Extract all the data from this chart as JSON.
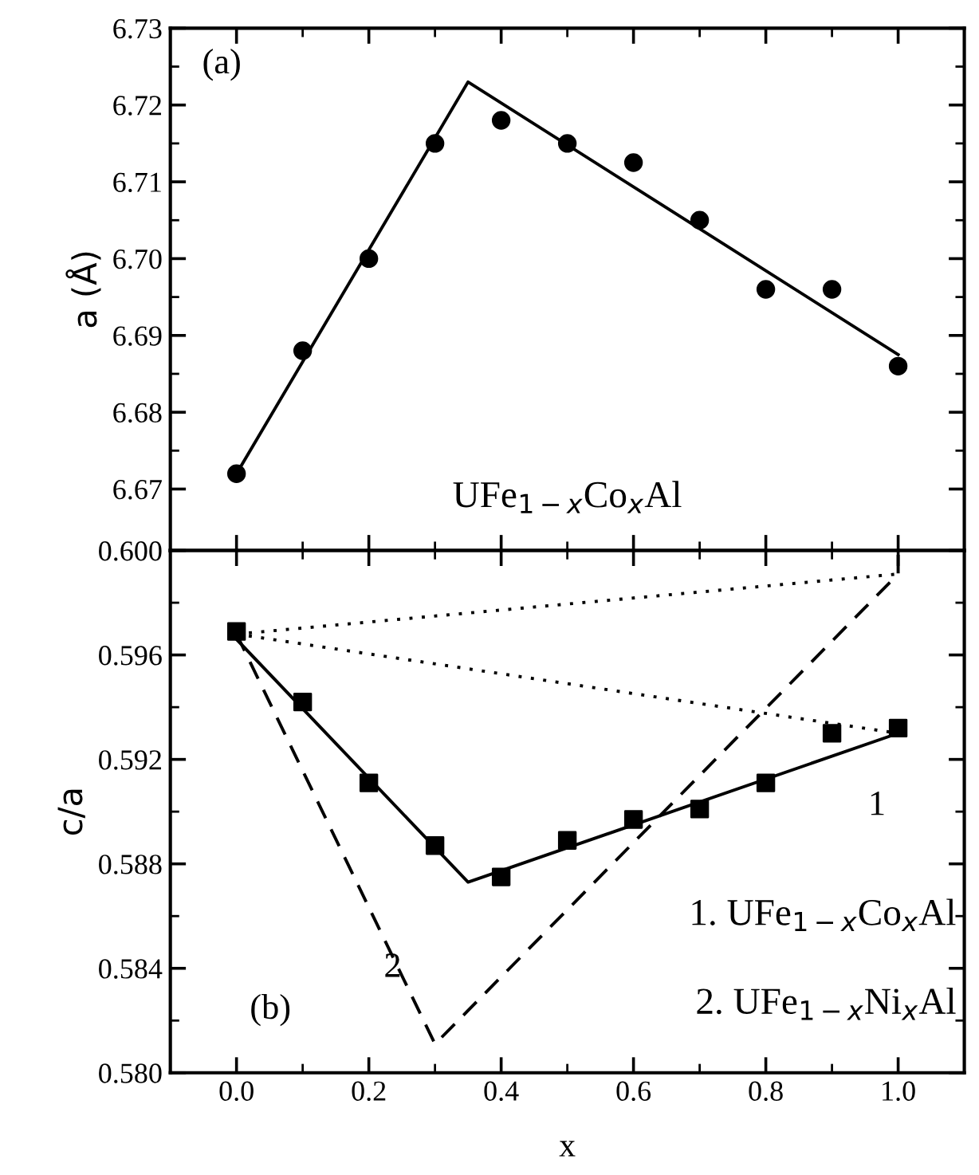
{
  "chart_data": [
    {
      "type": "scatter",
      "ylabel": "a (Å)",
      "xlim": [
        -0.1,
        1.1
      ],
      "xticks": [
        0,
        0.2,
        0.4,
        0.6,
        0.8,
        1.0
      ],
      "ylim": [
        6.662,
        6.73
      ],
      "yticks": [
        6.67,
        6.68,
        6.69,
        {
          "value": 6.7,
          "label": "6.70"
        },
        6.71,
        6.72,
        6.73
      ],
      "tick_labels": "y",
      "grid": false,
      "legend": false,
      "x": [
        0,
        0.1,
        0.2,
        0.3,
        0.4,
        0.5,
        0.6,
        0.7,
        0.8,
        0.9,
        1.0
      ],
      "series": [
        {
          "color": "#000000",
          "marker": "circle",
          "values": [
            6.672,
            6.688,
            6.7,
            6.715,
            6.718,
            6.715,
            6.7125,
            6.705,
            6.696,
            6.696,
            6.686
          ]
        },
        {
          "type": "line",
          "color": "#000000",
          "line_style": "solid",
          "marker": "none",
          "x": [
            0,
            0.35,
            1.0
          ],
          "values": [
            6.672,
            6.723,
            6.6875
          ]
        }
      ],
      "annotations": [
        "(a)",
        "UFe$_{1−x}$Co$_{x}$Al"
      ]
    },
    {
      "type": "scatter",
      "ylabel": "c/a",
      "xlabel": "x",
      "xlim": [
        -0.1,
        1.1
      ],
      "xticks": [
        {
          "value": 0,
          "label": "0.0"
        },
        0.2,
        0.4,
        0.6,
        0.8,
        {
          "value": 1.0,
          "label": "1.0"
        }
      ],
      "ylim": [
        0.58,
        0.6
      ],
      "yticks": [
        {
          "value": 0.58,
          "label": "0.580"
        },
        0.584,
        0.588,
        0.592,
        0.596,
        {
          "value": 0.6,
          "label": "0.600"
        }
      ],
      "grid": false,
      "legend": false,
      "x": [
        0,
        0.1,
        0.2,
        0.3,
        0.4,
        0.5,
        0.6,
        0.7,
        0.8,
        0.9,
        1.0
      ],
      "series": [
        {
          "color": "#000000",
          "marker": "square",
          "values": [
            0.5969,
            0.5942,
            0.5911,
            0.5887,
            0.5875,
            0.5889,
            0.5897,
            0.5901,
            0.5911,
            0.593,
            0.5932
          ]
        },
        {
          "type": "line",
          "color": "#000000",
          "line_style": "solid",
          "marker": "none",
          "x": [
            0,
            0.35,
            1.0
          ],
          "values": [
            0.5966,
            0.5873,
            0.593
          ]
        },
        {
          "type": "line",
          "color": "#000000",
          "line_style": "dashed",
          "marker": "none",
          "x": [
            0,
            0.3,
            1.0,
            1.0
          ],
          "values": [
            0.5968,
            0.5811,
            0.5991,
            0.6
          ]
        },
        {
          "type": "line",
          "color": "#000000",
          "line_style": "dotted",
          "marker": "none",
          "x": [
            0,
            1.0
          ],
          "values": [
            0.5968,
            0.5991
          ]
        },
        {
          "type": "line",
          "color": "#000000",
          "line_style": "dotted",
          "marker": "none",
          "x": [
            0,
            1.0
          ],
          "values": [
            0.5968,
            0.593
          ]
        }
      ],
      "annotations": [
        "(b)",
        "1",
        "2",
        "1. UFe$_{1−x}$Co$_{x}$Al",
        "2. UFe$_{1−x}$Ni$_{x}$Al"
      ]
    }
  ]
}
